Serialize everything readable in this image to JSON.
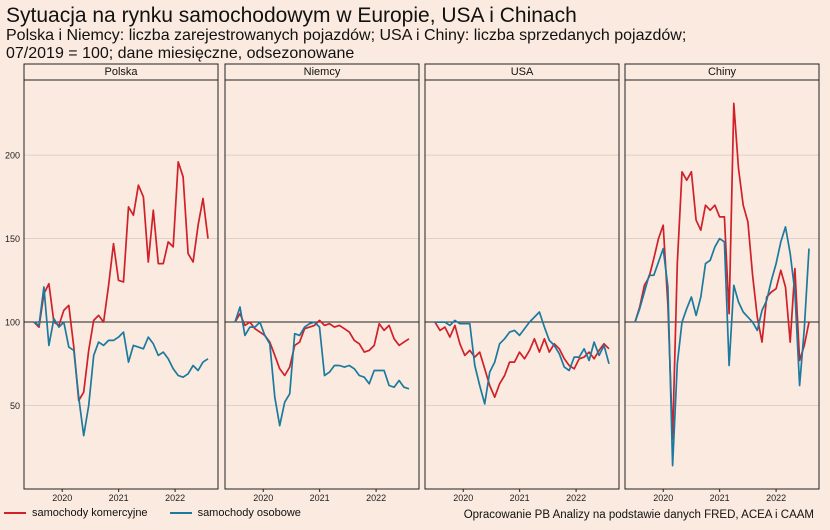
{
  "header": {
    "title": "Sytuacja na rynku samochodowym w Europie, USA i Chinach",
    "subtitle_line1": "Polska i Niemcy: liczba zarejestrowanych pojazdów; USA i Chiny: liczba sprzedanych pojazdów;",
    "subtitle_line2": "07/2019 = 100; dane miesięczne, odsezonowane"
  },
  "legend": {
    "commercial_label": "samochody komercyjne",
    "passenger_label": "samochody osobowe"
  },
  "colors": {
    "commercial": "#d0202a",
    "passenger": "#1b7a9e",
    "background": "#faeadf"
  },
  "source": "Opracowanie PB Analizy na podstawie danych FRED, ACEA i CAAM",
  "chart_data": {
    "type": "line",
    "x_start": "2019-07",
    "x_end": "2022-08",
    "ylim": [
      0,
      245
    ],
    "y_ticks": [
      50,
      100,
      150,
      200
    ],
    "x_ticks": [
      "2020",
      "2021",
      "2022"
    ],
    "reference_line": 100,
    "grid": "horizontal",
    "legend_position": "bottom-left",
    "panels": [
      {
        "name": "Polska",
        "series": [
          {
            "name": "samochody komercyjne",
            "values": [
              100,
              97,
              117,
              123,
              100,
              98,
              107,
              110,
              85,
              53,
              58,
              83,
              101,
              104,
              100,
              122,
              147,
              125,
              124,
              169,
              164,
              182,
              175,
              136,
              167,
              135,
              135,
              148,
              145,
              196,
              187,
              141,
              136,
              158,
              174,
              150
            ]
          },
          {
            "name": "samochody osobowe",
            "values": [
              100,
              98,
              121,
              86,
              102,
              97,
              100,
              85,
              83,
              55,
              32,
              50,
              80,
              88,
              86,
              89,
              89,
              91,
              94,
              76,
              86,
              85,
              84,
              91,
              87,
              80,
              82,
              78,
              72,
              68,
              67,
              69,
              74,
              71,
              76,
              78
            ]
          }
        ]
      },
      {
        "name": "Niemcy",
        "series": [
          {
            "name": "samochody komercyjne",
            "values": [
              100,
              105,
              98,
              100,
              96,
              94,
              92,
              88,
              80,
              72,
              68,
              73,
              86,
              88,
              96,
              97,
              98,
              101,
              98,
              99,
              97,
              98,
              96,
              94,
              89,
              87,
              82,
              83,
              86,
              99,
              95,
              98,
              90,
              86,
              88,
              90
            ]
          },
          {
            "name": "samochody osobowe",
            "values": [
              100,
              109,
              92,
              97,
              97,
              100,
              92,
              87,
              55,
              38,
              52,
              57,
              93,
              92,
              97,
              99,
              100,
              97,
              68,
              70,
              74,
              74,
              73,
              74,
              72,
              68,
              67,
              63,
              71,
              71,
              71,
              62,
              61,
              65,
              61,
              60
            ]
          }
        ]
      },
      {
        "name": "USA",
        "series": [
          {
            "name": "samochody komercyjne",
            "values": [
              100,
              95,
              97,
              91,
              98,
              87,
              80,
              83,
              79,
              82,
              72,
              62,
              55,
              63,
              68,
              76,
              76,
              82,
              78,
              83,
              90,
              82,
              90,
              82,
              87,
              84,
              78,
              74,
              72,
              78,
              79,
              82,
              78,
              83,
              87,
              84
            ]
          },
          {
            "name": "samochody osobowe",
            "values": [
              100,
              100,
              100,
              98,
              101,
              99,
              99,
              99,
              74,
              62,
              51,
              70,
              76,
              87,
              90,
              94,
              95,
              92,
              96,
              100,
              103,
              106,
              97,
              89,
              86,
              81,
              73,
              71,
              79,
              79,
              84,
              77,
              88,
              80,
              86,
              75
            ]
          }
        ]
      },
      {
        "name": "Chiny",
        "series": [
          {
            "name": "samochody komercyjne",
            "values": [
              100,
              109,
              122,
              127,
              138,
              150,
              158,
              110,
              30,
              135,
              190,
              185,
              190,
              161,
              155,
              170,
              167,
              170,
              163,
              163,
              105,
              231,
              192,
              170,
              160,
              128,
              103,
              88,
              115,
              118,
              120,
              131,
              121,
              88,
              132,
              77,
              86,
              100
            ]
          },
          {
            "name": "samochody osobowe",
            "values": [
              100,
              108,
              118,
              128,
              128,
              136,
              144,
              121,
              14,
              75,
              100,
              108,
              115,
              104,
              115,
              135,
              137,
              145,
              150,
              148,
              74,
              122,
              112,
              106,
              103,
              100,
              95,
              107,
              113,
              125,
              135,
              148,
              157,
              141,
              118,
              62,
              96,
              144
            ]
          }
        ]
      }
    ]
  }
}
